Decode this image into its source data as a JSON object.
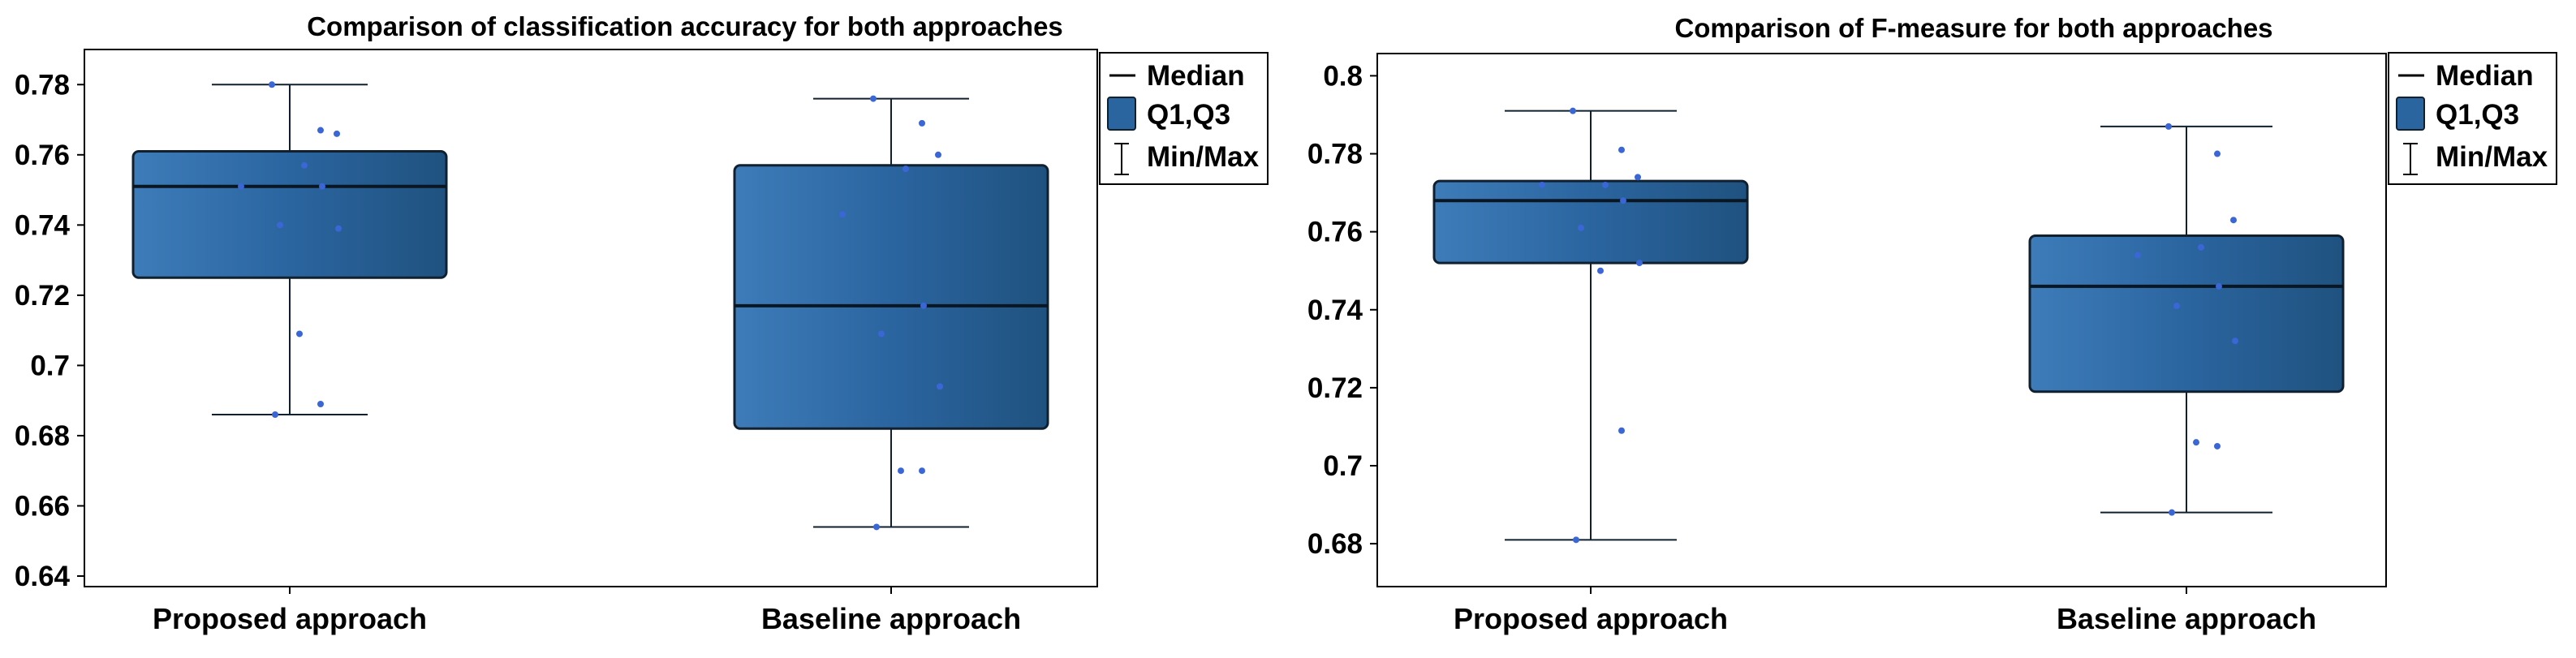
{
  "colors": {
    "box_fill": "#2b65a0",
    "box_fill_light": "#3d7cb9",
    "box_stroke": "#10202f",
    "point": "#3a66d6",
    "axis": "#000000",
    "background": "#ffffff"
  },
  "chart_data": [
    {
      "type": "box",
      "title": "Comparison of classification accuracy for both approaches",
      "xlabel": "",
      "ylabel": "",
      "ylim": [
        0.637,
        0.79
      ],
      "yticks": [
        0.64,
        0.66,
        0.68,
        0.7,
        0.72,
        0.74,
        0.76,
        0.78
      ],
      "ytick_labels": [
        "0.64",
        "0.66",
        "0.68",
        "0.7",
        "0.72",
        "0.74",
        "0.76",
        "0.78"
      ],
      "categories": [
        "Proposed approach",
        "Baseline approach"
      ],
      "boxes": [
        {
          "name": "Proposed approach",
          "min": 0.686,
          "q1": 0.725,
          "median": 0.751,
          "q3": 0.761,
          "max": 0.78,
          "points": [
            0.78,
            0.767,
            0.766,
            0.757,
            0.751,
            0.751,
            0.74,
            0.739,
            0.709,
            0.689,
            0.686
          ]
        },
        {
          "name": "Baseline approach",
          "min": 0.654,
          "q1": 0.682,
          "median": 0.717,
          "q3": 0.757,
          "max": 0.776,
          "points": [
            0.776,
            0.769,
            0.76,
            0.756,
            0.743,
            0.717,
            0.709,
            0.694,
            0.67,
            0.67,
            0.654
          ]
        }
      ],
      "legend": {
        "placement": "top-right-outside",
        "entries": [
          "Median",
          "Q1,Q3",
          "Min/Max"
        ]
      }
    },
    {
      "type": "box",
      "title": "Comparison of F-measure for both approaches",
      "xlabel": "",
      "ylabel": "",
      "ylim": [
        0.669,
        0.8057
      ],
      "yticks": [
        0.68,
        0.7,
        0.72,
        0.74,
        0.76,
        0.78,
        0.8
      ],
      "ytick_labels": [
        "0.68",
        "0.7",
        "0.72",
        "0.74",
        "0.76",
        "0.78",
        "0.8"
      ],
      "categories": [
        "Proposed approach",
        "Baseline approach"
      ],
      "boxes": [
        {
          "name": "Proposed approach",
          "min": 0.681,
          "q1": 0.752,
          "median": 0.768,
          "q3": 0.773,
          "max": 0.791,
          "points": [
            0.791,
            0.781,
            0.774,
            0.772,
            0.772,
            0.768,
            0.761,
            0.752,
            0.75,
            0.709,
            0.681
          ]
        },
        {
          "name": "Baseline approach",
          "min": 0.688,
          "q1": 0.719,
          "median": 0.746,
          "q3": 0.759,
          "max": 0.787,
          "points": [
            0.787,
            0.78,
            0.763,
            0.756,
            0.754,
            0.746,
            0.741,
            0.732,
            0.706,
            0.705,
            0.688
          ]
        }
      ],
      "legend": {
        "placement": "top-right-outside",
        "entries": [
          "Median",
          "Q1,Q3",
          "Min/Max"
        ]
      }
    }
  ]
}
